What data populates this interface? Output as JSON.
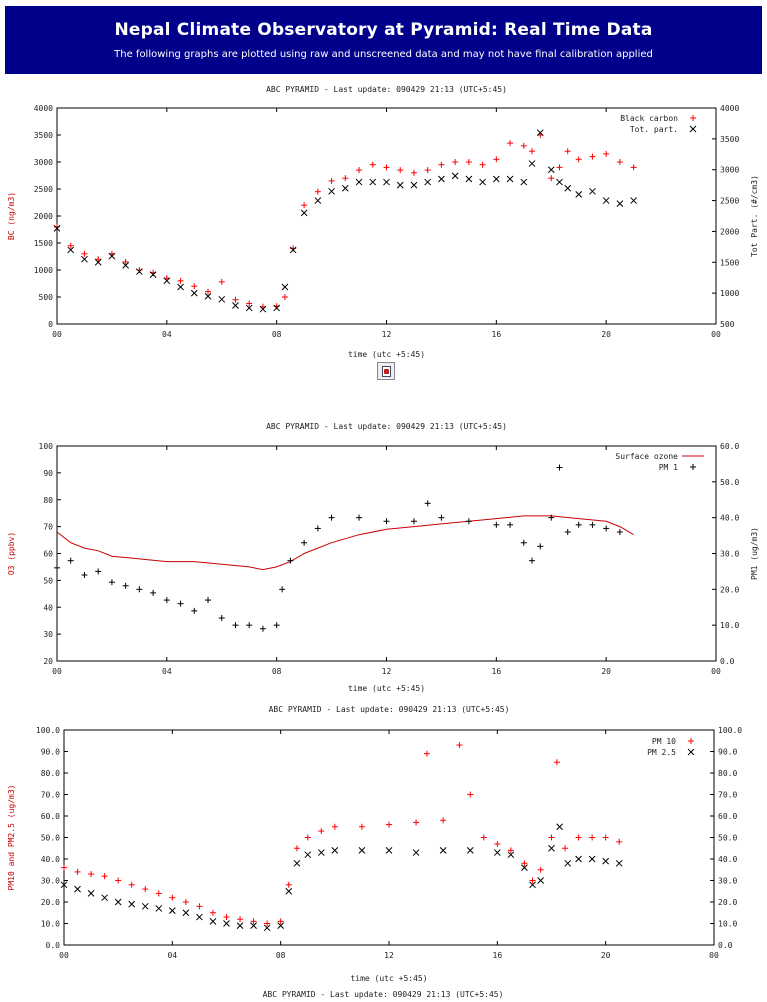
{
  "header": {
    "title": "Nepal Climate Observatory at Pyramid: Real Time Data",
    "subtitle": "The following graphs are plotted using raw and unscreened data and may not have final calibration applied"
  },
  "footer_fragment": "ABC PYRAMID - Last update: 090429 21:13 (UTC+5:45)",
  "chart_data": [
    {
      "type": "scatter",
      "title": "ABC PYRAMID - Last update: 090429 21:13 (UTC+5:45)",
      "xlabel": "time (utc +5:45)",
      "xlim": [
        0,
        24
      ],
      "xticks": [
        "00",
        "04",
        "08",
        "12",
        "16",
        "20",
        "00"
      ],
      "ylabel": "BC (ng/m3)",
      "ylim": [
        0,
        4000
      ],
      "yticks": [
        "0",
        "500",
        "1000",
        "1500",
        "2000",
        "2500",
        "3000",
        "3500",
        "4000"
      ],
      "y2label": "Tot Part. (#/cm3)",
      "y2lim": [
        500,
        4000
      ],
      "y2ticks": [
        "500",
        "1000",
        "1500",
        "2000",
        "2500",
        "3000",
        "3500",
        "4000"
      ],
      "legend_position": "top-right",
      "series": [
        {
          "name": "Black carbon",
          "marker": "+",
          "color": "#ff0000",
          "axis": "left",
          "x": [
            0,
            0.5,
            1,
            1.5,
            2,
            2.5,
            3,
            3.5,
            4,
            4.5,
            5,
            5.5,
            6,
            6.5,
            7,
            7.5,
            8,
            8.3,
            8.6,
            9,
            9.5,
            10,
            10.5,
            11,
            11.5,
            12,
            12.5,
            13,
            13.5,
            14,
            14.5,
            15,
            15.5,
            16,
            16.5,
            17,
            17.3,
            17.6,
            18,
            18.3,
            18.6,
            19,
            19.5,
            20,
            20.5,
            21
          ],
          "y": [
            1800,
            1450,
            1300,
            1200,
            1300,
            1150,
            1000,
            950,
            850,
            800,
            700,
            600,
            780,
            450,
            380,
            320,
            330,
            500,
            1400,
            2200,
            2450,
            2650,
            2700,
            2850,
            2950,
            2900,
            2850,
            2800,
            2850,
            2950,
            3000,
            3000,
            2950,
            3050,
            3350,
            3300,
            3200,
            3500,
            2700,
            2900,
            3200,
            3050,
            3100,
            3150,
            3000,
            2900
          ]
        },
        {
          "name": "Tot. part.",
          "marker": "x",
          "color": "#000000",
          "axis": "right",
          "x": [
            0,
            0.5,
            1,
            1.5,
            2,
            2.5,
            3,
            3.5,
            4,
            4.5,
            5,
            5.5,
            6,
            6.5,
            7,
            7.5,
            8,
            8.3,
            8.6,
            9,
            9.5,
            10,
            10.5,
            11,
            11.5,
            12,
            12.5,
            13,
            13.5,
            14,
            14.5,
            15,
            15.5,
            16,
            16.5,
            17,
            17.3,
            17.6,
            18,
            18.3,
            18.6,
            19,
            19.5,
            20,
            20.5,
            21
          ],
          "y": [
            2050,
            1700,
            1550,
            1500,
            1600,
            1450,
            1350,
            1300,
            1200,
            1100,
            1000,
            950,
            900,
            800,
            760,
            740,
            760,
            1100,
            1700,
            2300,
            2500,
            2650,
            2700,
            2800,
            2800,
            2800,
            2750,
            2750,
            2800,
            2850,
            2900,
            2850,
            2800,
            2850,
            2850,
            2800,
            3100,
            3600,
            3000,
            2800,
            2700,
            2600,
            2650,
            2500,
            2450,
            2500
          ]
        }
      ]
    },
    {
      "type": "scatter",
      "title": "ABC PYRAMID - Last update: 090429 21:13 (UTC+5:45)",
      "xlabel": "time (utc +5:45)",
      "xlim": [
        0,
        24
      ],
      "xticks": [
        "00",
        "04",
        "08",
        "12",
        "16",
        "20",
        "00"
      ],
      "ylabel": "O3 (ppbv)",
      "ylim": [
        20,
        100
      ],
      "yticks": [
        "20",
        "30",
        "40",
        "50",
        "60",
        "70",
        "80",
        "90",
        "100"
      ],
      "y2label": "PM1 (ug/m3)",
      "y2lim": [
        0,
        60
      ],
      "y2ticks": [
        "0.0",
        "10.0",
        "20.0",
        "30.0",
        "40.0",
        "50.0",
        "60.0"
      ],
      "legend_position": "top-right",
      "series": [
        {
          "name": "Surface ozone",
          "marker": "line",
          "color": "#cc0000",
          "axis": "left",
          "x": [
            0,
            0.5,
            1,
            1.5,
            2,
            3,
            4,
            5,
            6,
            7,
            7.5,
            8,
            8.5,
            9,
            10,
            11,
            12,
            13,
            14,
            15,
            16,
            17,
            18,
            19,
            20,
            20.5,
            21
          ],
          "y": [
            68,
            64,
            62,
            61,
            59,
            58,
            57,
            57,
            56,
            55,
            54,
            55,
            57,
            60,
            64,
            67,
            69,
            70,
            71,
            72,
            73,
            74,
            74,
            73,
            72,
            70,
            67
          ]
        },
        {
          "name": "PM 1",
          "marker": "+",
          "color": "#000000",
          "axis": "right",
          "x": [
            0,
            0.5,
            1,
            1.5,
            2,
            2.5,
            3,
            3.5,
            4,
            4.5,
            5,
            5.5,
            6,
            6.5,
            7,
            7.5,
            8,
            8.2,
            8.5,
            9,
            9.5,
            10,
            11,
            12,
            13,
            13.5,
            14,
            15,
            16,
            16.5,
            17,
            17.3,
            17.6,
            18,
            18.3,
            18.6,
            19,
            19.5,
            20,
            20.5
          ],
          "y": [
            26,
            28,
            24,
            25,
            22,
            21,
            20,
            19,
            17,
            16,
            14,
            17,
            12,
            10,
            10,
            9,
            10,
            20,
            28,
            33,
            37,
            40,
            40,
            39,
            39,
            44,
            40,
            39,
            38,
            38,
            33,
            28,
            32,
            40,
            54,
            36,
            38,
            38,
            37,
            36
          ]
        }
      ]
    },
    {
      "type": "scatter",
      "title": "ABC PYRAMID - Last update: 090429 21:13 (UTC+5:45)",
      "xlabel": "time (utc +5:45)",
      "xlim": [
        0,
        24
      ],
      "xticks": [
        "00",
        "04",
        "08",
        "12",
        "16",
        "20",
        "00"
      ],
      "ylabel": "PM10 and PM2.5 (ug/m3)",
      "ylim": [
        0,
        100
      ],
      "yticks": [
        "0.0",
        "10.0",
        "20.0",
        "30.0",
        "40.0",
        "50.0",
        "60.0",
        "70.0",
        "80.0",
        "90.0",
        "100.0"
      ],
      "y2lim": [
        0,
        100
      ],
      "y2ticks": [
        "0.0",
        "10.0",
        "20.0",
        "30.0",
        "40.0",
        "50.0",
        "60.0",
        "70.0",
        "80.0",
        "90.0",
        "100.0"
      ],
      "legend_position": "top-right",
      "series": [
        {
          "name": "PM 10",
          "marker": "+",
          "color": "#ff0000",
          "axis": "left",
          "x": [
            0,
            0.5,
            1,
            1.5,
            2,
            2.5,
            3,
            3.5,
            4,
            4.5,
            5,
            5.5,
            6,
            6.5,
            7,
            7.5,
            8,
            8.3,
            8.6,
            9,
            9.5,
            10,
            11,
            12,
            13,
            13.4,
            14,
            14.6,
            15,
            15.5,
            16,
            16.5,
            17,
            17.3,
            17.6,
            18,
            18.2,
            18.5,
            19,
            19.5,
            20,
            20.5
          ],
          "y": [
            36,
            34,
            33,
            32,
            30,
            28,
            26,
            24,
            22,
            20,
            18,
            15,
            13,
            12,
            11,
            10,
            11,
            28,
            45,
            50,
            53,
            55,
            55,
            56,
            57,
            89,
            58,
            93,
            70,
            50,
            47,
            44,
            38,
            30,
            35,
            50,
            85,
            45,
            50,
            50,
            50,
            48
          ]
        },
        {
          "name": "PM 2.5",
          "marker": "x",
          "color": "#000000",
          "axis": "left",
          "x": [
            0,
            0.5,
            1,
            1.5,
            2,
            2.5,
            3,
            3.5,
            4,
            4.5,
            5,
            5.5,
            6,
            6.5,
            7,
            7.5,
            8,
            8.3,
            8.6,
            9,
            9.5,
            10,
            11,
            12,
            13,
            14,
            15,
            16,
            16.5,
            17,
            17.3,
            17.6,
            18,
            18.3,
            18.6,
            19,
            19.5,
            20,
            20.5
          ],
          "y": [
            28,
            26,
            24,
            22,
            20,
            19,
            18,
            17,
            16,
            15,
            13,
            11,
            10,
            9,
            9,
            8,
            9,
            25,
            38,
            42,
            43,
            44,
            44,
            44,
            43,
            44,
            44,
            43,
            42,
            36,
            28,
            30,
            45,
            55,
            38,
            40,
            40,
            39,
            38
          ]
        }
      ]
    }
  ]
}
